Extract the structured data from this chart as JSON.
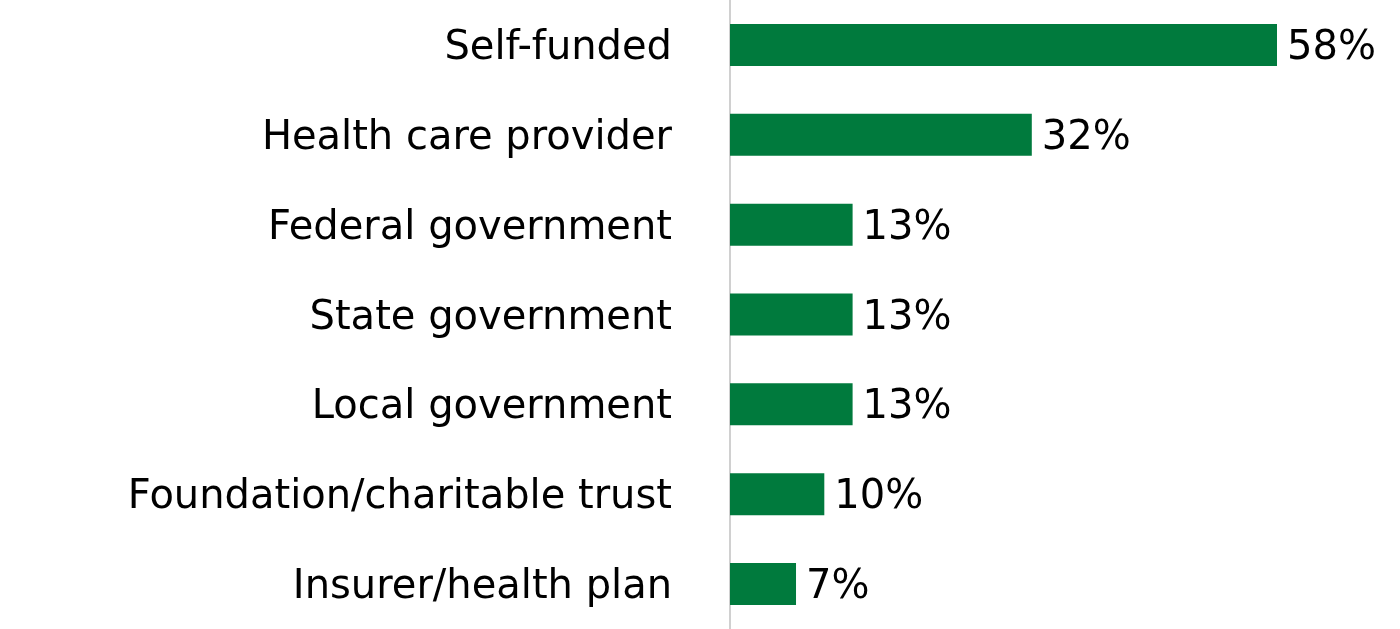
{
  "chart_data": {
    "type": "bar",
    "orientation": "horizontal",
    "categories": [
      "Self-funded",
      "Health care provider",
      "Federal government",
      "State government",
      "Local government",
      "Foundation/charitable trust",
      "Insurer/health plan"
    ],
    "values": [
      58,
      32,
      13,
      13,
      13,
      10,
      7
    ],
    "value_labels": [
      "58%",
      "32%",
      "13%",
      "13%",
      "13%",
      "10%",
      "7%"
    ],
    "color": "#007a3d",
    "tick_labels": "y"
  }
}
